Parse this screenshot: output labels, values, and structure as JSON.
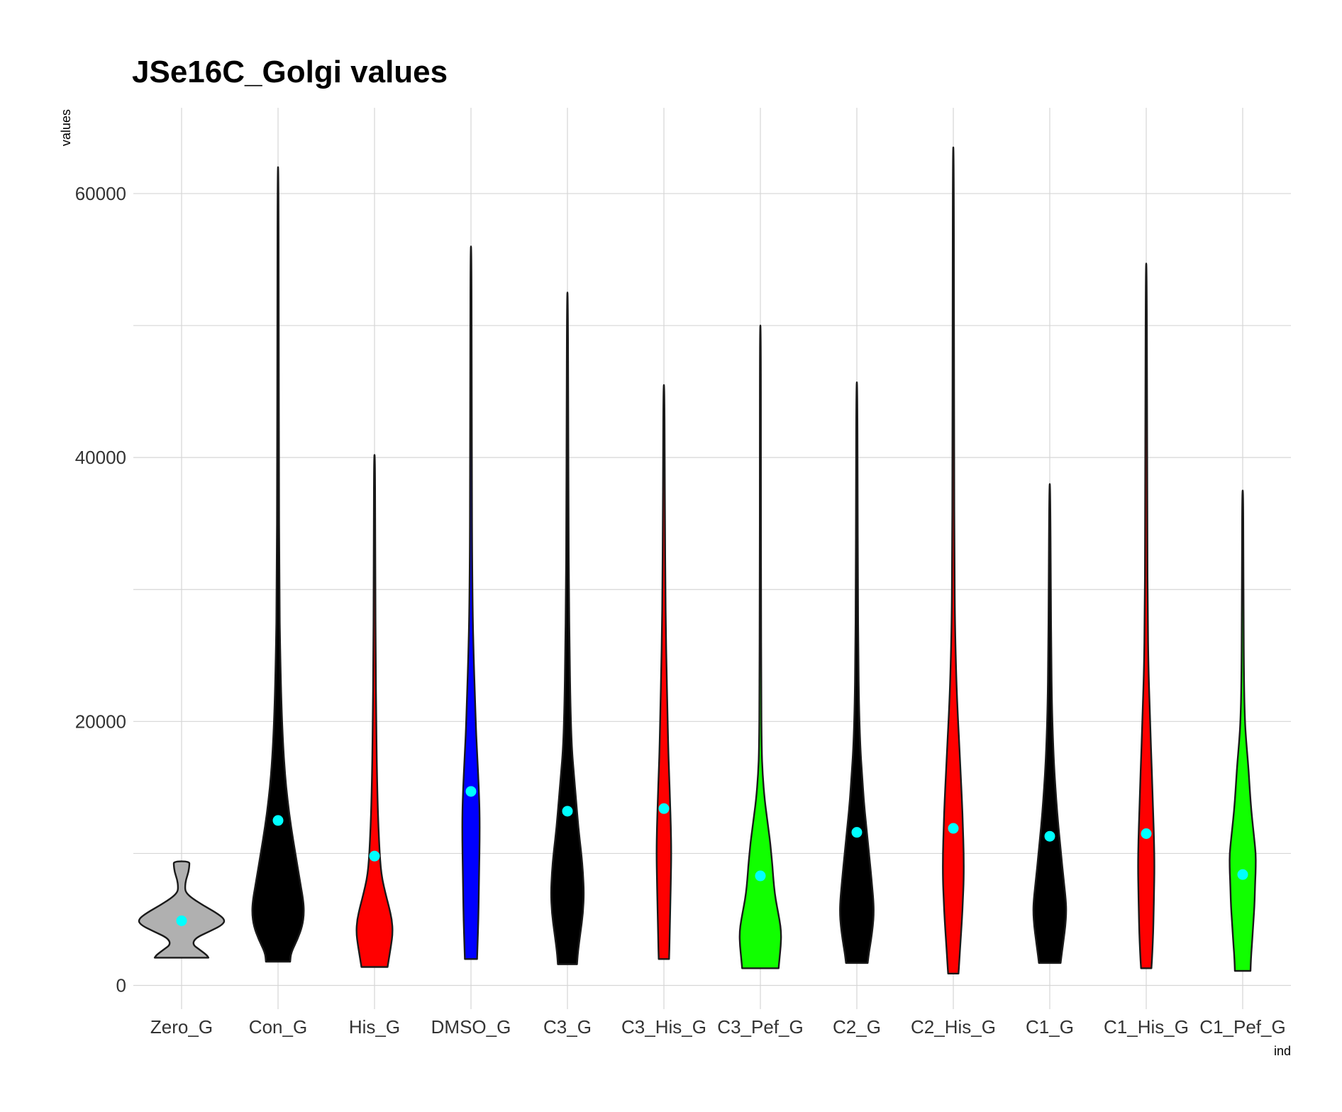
{
  "chart_data": {
    "type": "violin",
    "title": "JSe16C_Golgi values",
    "xlabel": "ind",
    "ylabel": "values",
    "ylim": [
      -1800,
      66500
    ],
    "y_ticks": [
      0,
      20000,
      40000,
      60000
    ],
    "y_gridlines_minor": [
      10000,
      30000,
      50000
    ],
    "grid": true,
    "legend": "none",
    "mean_marker_color": "#00ffff",
    "categories": [
      "Zero_G",
      "Con_G",
      "His_G",
      "DMSO_G",
      "C3_G",
      "C3_His_G",
      "C3_Pef_G",
      "C2_G",
      "C2_His_G",
      "C1_G",
      "C1_His_G",
      "C1_Pef_G"
    ],
    "series": [
      {
        "category": "Zero_G",
        "fill": "#b0b0b0",
        "min": 2100,
        "max": 9400,
        "mean": 4900,
        "density": [
          [
            2100,
            0.62
          ],
          [
            2300,
            0.58
          ],
          [
            2700,
            0.42
          ],
          [
            3100,
            0.25
          ],
          [
            3600,
            0.32
          ],
          [
            4100,
            0.65
          ],
          [
            4600,
            0.95
          ],
          [
            5000,
            1.0
          ],
          [
            5500,
            0.8
          ],
          [
            6100,
            0.48
          ],
          [
            6700,
            0.2
          ],
          [
            7100,
            0.09
          ],
          [
            7500,
            0.08
          ],
          [
            8000,
            0.1
          ],
          [
            8600,
            0.16
          ],
          [
            9100,
            0.18
          ],
          [
            9400,
            0.18
          ]
        ]
      },
      {
        "category": "Con_G",
        "fill": "#000000",
        "min": 1800,
        "max": 62000,
        "mean": 12500,
        "density": [
          [
            1800,
            0.28
          ],
          [
            2500,
            0.3
          ],
          [
            3500,
            0.45
          ],
          [
            4500,
            0.56
          ],
          [
            5500,
            0.6
          ],
          [
            6500,
            0.58
          ],
          [
            8000,
            0.5
          ],
          [
            10000,
            0.4
          ],
          [
            12000,
            0.3
          ],
          [
            14000,
            0.22
          ],
          [
            16000,
            0.16
          ],
          [
            18000,
            0.12
          ],
          [
            21000,
            0.08
          ],
          [
            25000,
            0.05
          ],
          [
            30000,
            0.03
          ],
          [
            40000,
            0.02
          ],
          [
            50000,
            0.015
          ],
          [
            62000,
            0.01
          ]
        ]
      },
      {
        "category": "His_G",
        "fill": "#ff0000",
        "min": 1400,
        "max": 40200,
        "mean": 9800,
        "density": [
          [
            1400,
            0.3
          ],
          [
            2000,
            0.33
          ],
          [
            3000,
            0.38
          ],
          [
            4000,
            0.42
          ],
          [
            5000,
            0.4
          ],
          [
            6000,
            0.33
          ],
          [
            7000,
            0.25
          ],
          [
            8000,
            0.18
          ],
          [
            9000,
            0.14
          ],
          [
            10000,
            0.12
          ],
          [
            12000,
            0.09
          ],
          [
            14000,
            0.07
          ],
          [
            17000,
            0.05
          ],
          [
            20000,
            0.04
          ],
          [
            25000,
            0.025
          ],
          [
            30000,
            0.02
          ],
          [
            35000,
            0.015
          ],
          [
            40200,
            0.01
          ]
        ]
      },
      {
        "category": "DMSO_G",
        "fill": "#0000ff",
        "min": 2000,
        "max": 56000,
        "mean": 14700,
        "density": [
          [
            2000,
            0.14
          ],
          [
            3000,
            0.15
          ],
          [
            5000,
            0.17
          ],
          [
            7000,
            0.18
          ],
          [
            9000,
            0.19
          ],
          [
            11000,
            0.2
          ],
          [
            13000,
            0.2
          ],
          [
            15000,
            0.18
          ],
          [
            17000,
            0.15
          ],
          [
            19000,
            0.12
          ],
          [
            22000,
            0.09
          ],
          [
            25000,
            0.06
          ],
          [
            28000,
            0.04
          ],
          [
            33000,
            0.025
          ],
          [
            40000,
            0.02
          ],
          [
            48000,
            0.015
          ],
          [
            56000,
            0.01
          ]
        ]
      },
      {
        "category": "C3_G",
        "fill": "#000000",
        "min": 1600,
        "max": 52500,
        "mean": 13200,
        "density": [
          [
            1600,
            0.22
          ],
          [
            2500,
            0.24
          ],
          [
            4000,
            0.3
          ],
          [
            5500,
            0.36
          ],
          [
            7000,
            0.38
          ],
          [
            8500,
            0.36
          ],
          [
            10000,
            0.32
          ],
          [
            12000,
            0.25
          ],
          [
            14000,
            0.2
          ],
          [
            16000,
            0.15
          ],
          [
            18000,
            0.1
          ],
          [
            21000,
            0.07
          ],
          [
            25000,
            0.05
          ],
          [
            30000,
            0.035
          ],
          [
            35000,
            0.025
          ],
          [
            42000,
            0.02
          ],
          [
            52500,
            0.01
          ]
        ]
      },
      {
        "category": "C3_His_G",
        "fill": "#ff0000",
        "min": 2000,
        "max": 45500,
        "mean": 13400,
        "density": [
          [
            2000,
            0.12
          ],
          [
            3500,
            0.13
          ],
          [
            5000,
            0.14
          ],
          [
            6500,
            0.15
          ],
          [
            8000,
            0.16
          ],
          [
            10000,
            0.17
          ],
          [
            12000,
            0.16
          ],
          [
            14000,
            0.14
          ],
          [
            16000,
            0.12
          ],
          [
            18000,
            0.1
          ],
          [
            21000,
            0.08
          ],
          [
            24000,
            0.06
          ],
          [
            27000,
            0.045
          ],
          [
            30000,
            0.035
          ],
          [
            35000,
            0.025
          ],
          [
            40000,
            0.018
          ],
          [
            45500,
            0.01
          ]
        ]
      },
      {
        "category": "C3_Pef_G",
        "fill": "#11ff00",
        "min": 1300,
        "max": 50000,
        "mean": 8300,
        "density": [
          [
            1300,
            0.42
          ],
          [
            2000,
            0.44
          ],
          [
            3000,
            0.47
          ],
          [
            4000,
            0.48
          ],
          [
            5000,
            0.44
          ],
          [
            6000,
            0.38
          ],
          [
            7000,
            0.33
          ],
          [
            8000,
            0.3
          ],
          [
            9000,
            0.28
          ],
          [
            10000,
            0.25
          ],
          [
            11000,
            0.22
          ],
          [
            12500,
            0.16
          ],
          [
            14000,
            0.1
          ],
          [
            16000,
            0.05
          ],
          [
            18000,
            0.03
          ],
          [
            22000,
            0.02
          ],
          [
            30000,
            0.015
          ],
          [
            40000,
            0.012
          ],
          [
            50000,
            0.01
          ]
        ]
      },
      {
        "category": "C2_G",
        "fill": "#000000",
        "min": 1700,
        "max": 45700,
        "mean": 11600,
        "density": [
          [
            1700,
            0.25
          ],
          [
            2500,
            0.28
          ],
          [
            3500,
            0.33
          ],
          [
            4500,
            0.37
          ],
          [
            5500,
            0.39
          ],
          [
            6500,
            0.38
          ],
          [
            8000,
            0.34
          ],
          [
            10000,
            0.28
          ],
          [
            12000,
            0.22
          ],
          [
            14000,
            0.16
          ],
          [
            16000,
            0.12
          ],
          [
            18000,
            0.08
          ],
          [
            21000,
            0.05
          ],
          [
            25000,
            0.035
          ],
          [
            30000,
            0.025
          ],
          [
            38000,
            0.018
          ],
          [
            45700,
            0.01
          ]
        ]
      },
      {
        "category": "C2_His_G",
        "fill": "#ff0000",
        "min": 900,
        "max": 63500,
        "mean": 11900,
        "density": [
          [
            900,
            0.12
          ],
          [
            2000,
            0.14
          ],
          [
            3500,
            0.17
          ],
          [
            5000,
            0.2
          ],
          [
            6500,
            0.22
          ],
          [
            8000,
            0.24
          ],
          [
            10000,
            0.24
          ],
          [
            12000,
            0.22
          ],
          [
            14000,
            0.2
          ],
          [
            16000,
            0.17
          ],
          [
            18000,
            0.14
          ],
          [
            20000,
            0.11
          ],
          [
            23000,
            0.07
          ],
          [
            27000,
            0.04
          ],
          [
            32000,
            0.025
          ],
          [
            40000,
            0.02
          ],
          [
            50000,
            0.015
          ],
          [
            63500,
            0.01
          ]
        ]
      },
      {
        "category": "C1_G",
        "fill": "#000000",
        "min": 1700,
        "max": 38000,
        "mean": 11300,
        "density": [
          [
            1700,
            0.25
          ],
          [
            2500,
            0.28
          ],
          [
            3500,
            0.32
          ],
          [
            4500,
            0.36
          ],
          [
            5500,
            0.38
          ],
          [
            6500,
            0.37
          ],
          [
            8000,
            0.32
          ],
          [
            10000,
            0.26
          ],
          [
            12000,
            0.2
          ],
          [
            14000,
            0.15
          ],
          [
            16000,
            0.11
          ],
          [
            18000,
            0.08
          ],
          [
            21000,
            0.05
          ],
          [
            25000,
            0.035
          ],
          [
            30000,
            0.025
          ],
          [
            38000,
            0.01
          ]
        ]
      },
      {
        "category": "C1_His_G",
        "fill": "#ff0000",
        "min": 1300,
        "max": 54700,
        "mean": 11500,
        "density": [
          [
            1300,
            0.12
          ],
          [
            2500,
            0.14
          ],
          [
            4000,
            0.16
          ],
          [
            5500,
            0.17
          ],
          [
            7000,
            0.18
          ],
          [
            9000,
            0.19
          ],
          [
            11000,
            0.18
          ],
          [
            13000,
            0.16
          ],
          [
            15000,
            0.14
          ],
          [
            17000,
            0.12
          ],
          [
            19000,
            0.1
          ],
          [
            21000,
            0.08
          ],
          [
            24000,
            0.05
          ],
          [
            28000,
            0.035
          ],
          [
            34000,
            0.025
          ],
          [
            44000,
            0.02
          ],
          [
            54700,
            0.01
          ]
        ]
      },
      {
        "category": "C1_Pef_G",
        "fill": "#11ff00",
        "min": 1100,
        "max": 37500,
        "mean": 8400,
        "density": [
          [
            1100,
            0.18
          ],
          [
            2000,
            0.19
          ],
          [
            3000,
            0.21
          ],
          [
            4000,
            0.23
          ],
          [
            5000,
            0.25
          ],
          [
            6000,
            0.27
          ],
          [
            7000,
            0.28
          ],
          [
            8000,
            0.29
          ],
          [
            9000,
            0.3
          ],
          [
            10000,
            0.3
          ],
          [
            11000,
            0.27
          ],
          [
            12500,
            0.22
          ],
          [
            14000,
            0.18
          ],
          [
            15500,
            0.15
          ],
          [
            17000,
            0.12
          ],
          [
            18500,
            0.08
          ],
          [
            20000,
            0.05
          ],
          [
            23000,
            0.03
          ],
          [
            28000,
            0.02
          ],
          [
            33000,
            0.015
          ],
          [
            37500,
            0.01
          ]
        ]
      }
    ]
  }
}
